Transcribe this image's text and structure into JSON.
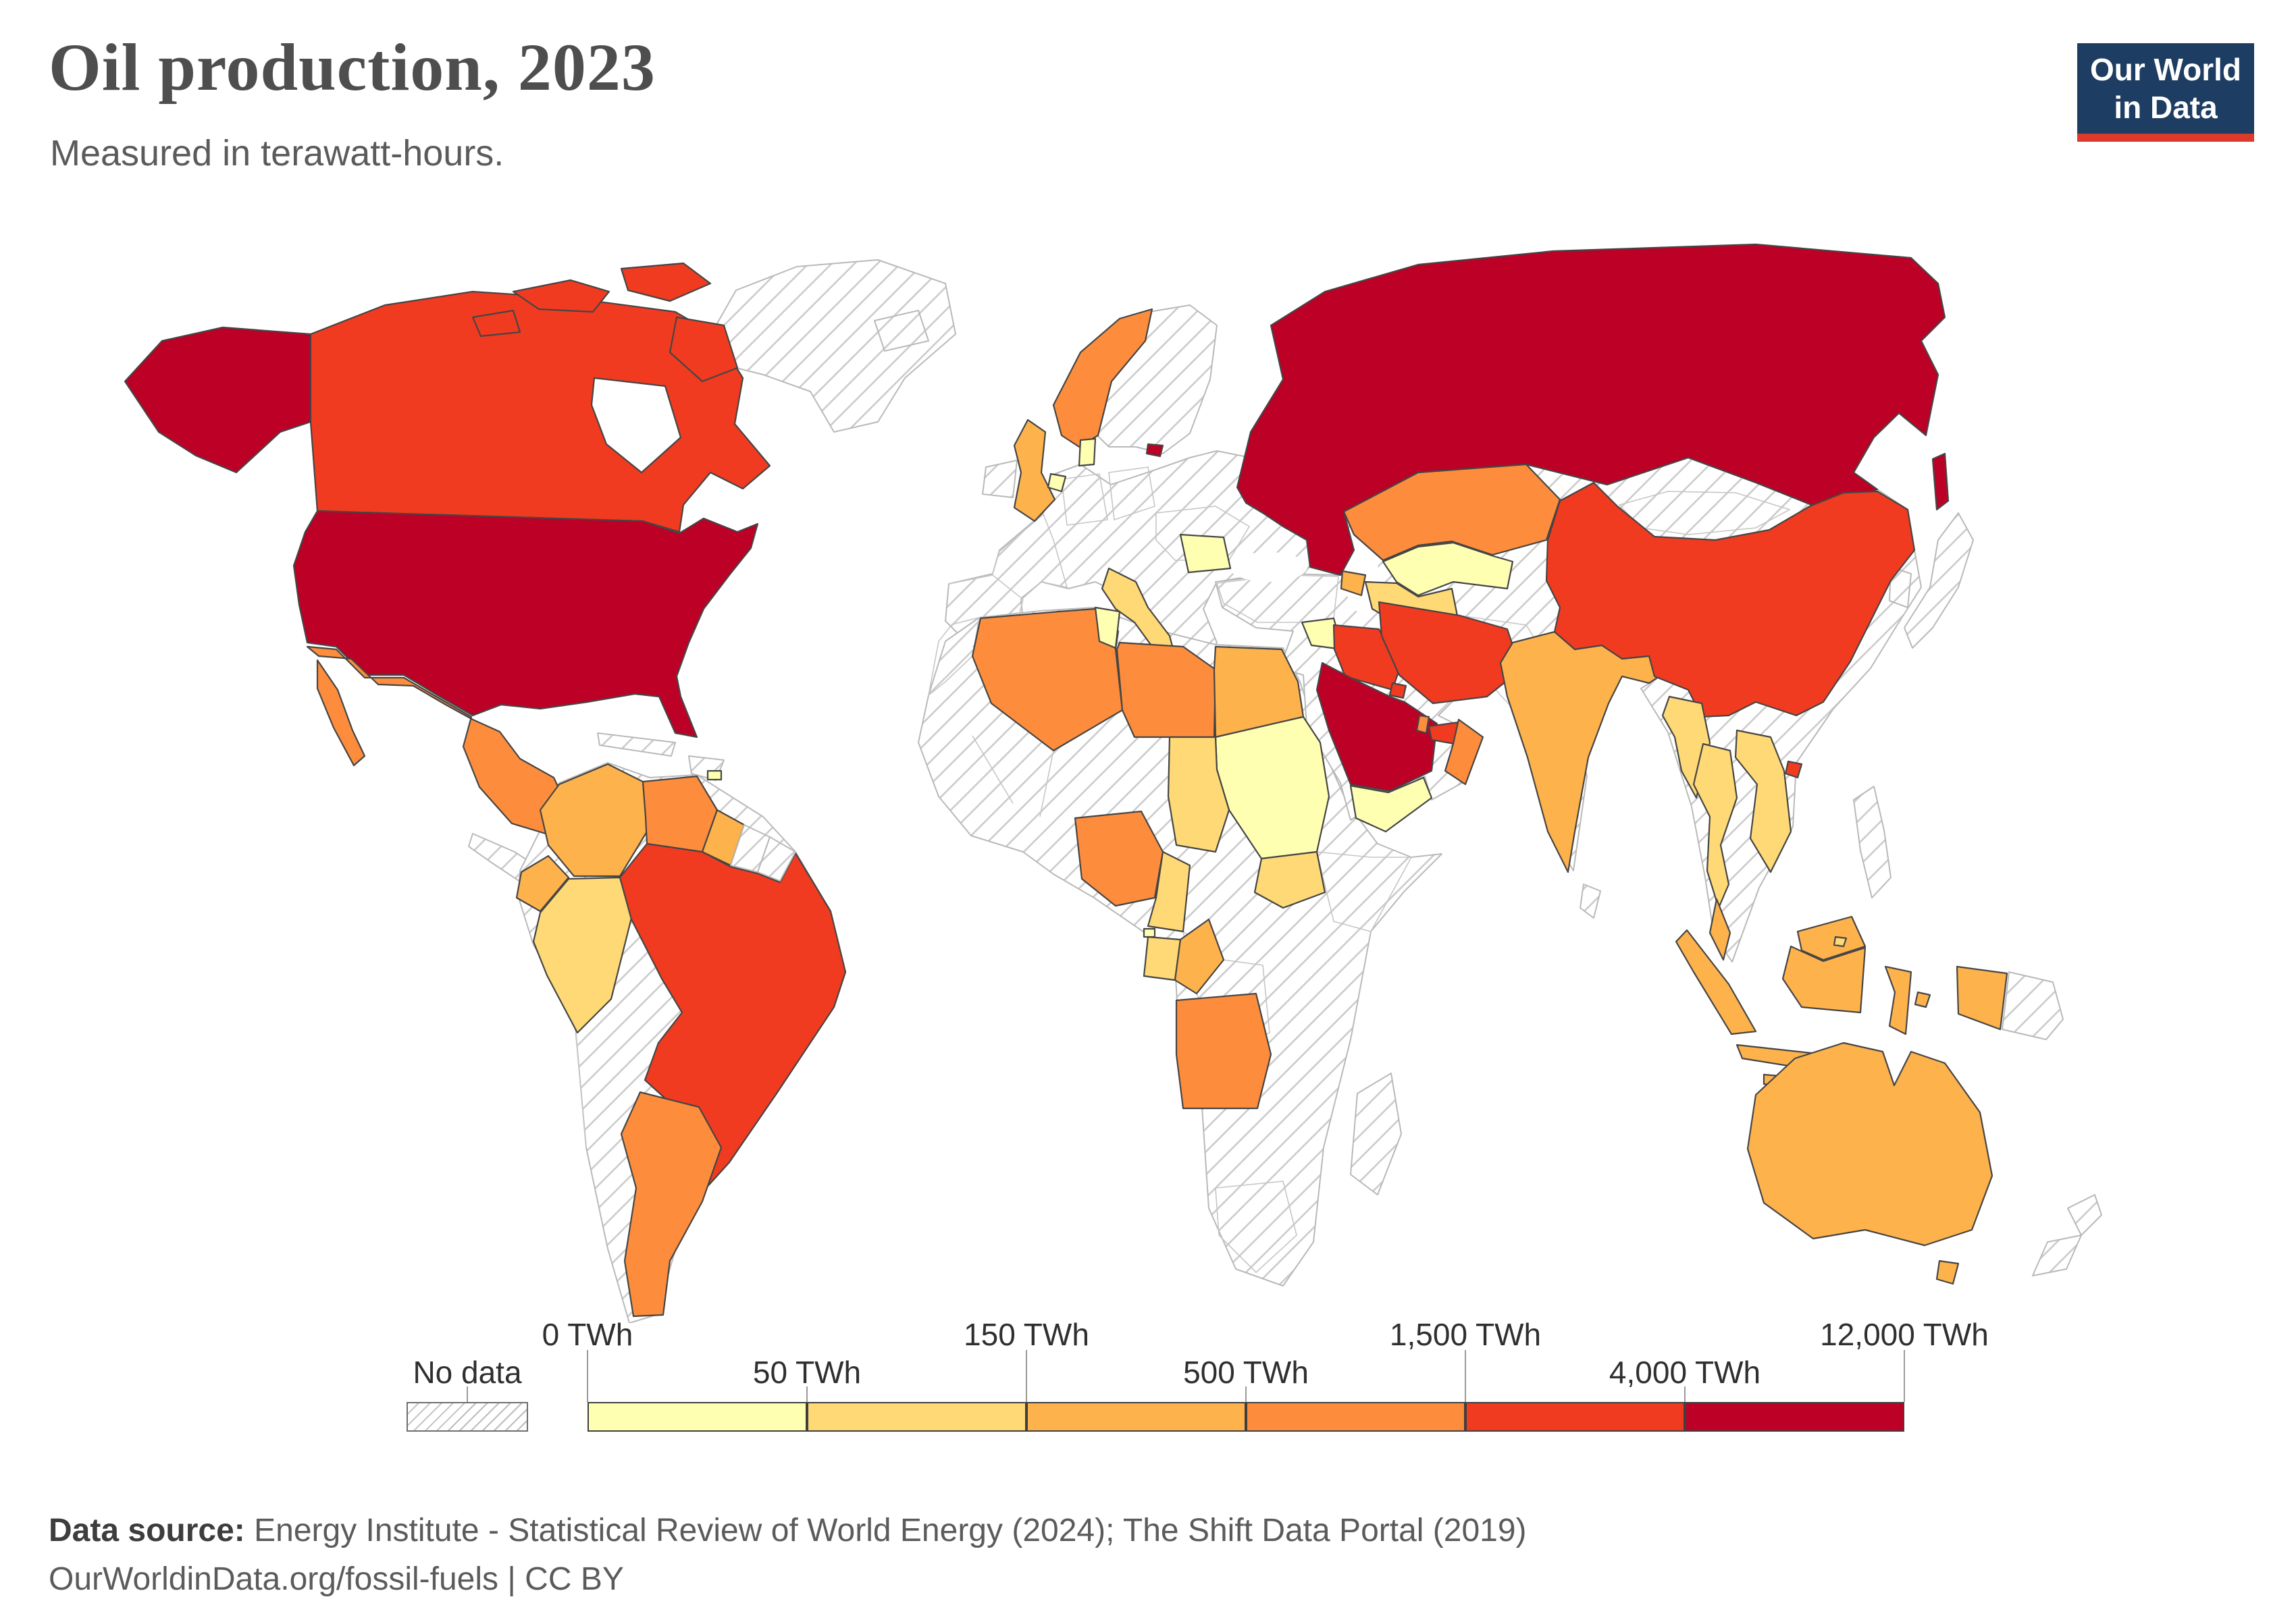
{
  "header": {
    "title": "Oil production, 2023",
    "subtitle": "Measured in terawatt-hours."
  },
  "logo": {
    "line1": "Our World",
    "line2": "in Data",
    "bg_color": "#1d3d63",
    "accent_color": "#dc3a2b"
  },
  "legend": {
    "no_data_label": "No data",
    "tick_labels": [
      "0 TWh",
      "50 TWh",
      "150 TWh",
      "500 TWh",
      "1,500 TWh",
      "4,000 TWh",
      "12,000 TWh"
    ],
    "bin_colors": [
      "#ffffb2",
      "#fed976",
      "#feb24c",
      "#fd8d3c",
      "#f03b20",
      "#bd0026"
    ]
  },
  "footer": {
    "source_label": "Data source:",
    "source_text": " Energy Institute - Statistical Review of World Energy (2024); The Shift Data Portal (2019)",
    "license_text": "OurWorldinData.org/fossil-fuels | CC BY"
  },
  "map": {
    "fills": {
      "united-states": "#bd0026",
      "canada": "#f03b20",
      "mexico": "#fd8d3c",
      "greenland": "hatch",
      "iceland": "hatch",
      "central-america": "hatch",
      "cuba": "hatch",
      "hispaniola": "hatch",
      "south-america-no-data": "hatch",
      "colombia": "#feb24c",
      "venezuela": "#fd8d3c",
      "guyana": "#feb24c",
      "suriname": "hatch",
      "french-guiana": "hatch",
      "ecuador": "#feb24c",
      "peru": "#fed976",
      "brazil": "#f03b20",
      "argentina": "#fd8d3c",
      "trinidad-and-tobago": "#ffffb2",
      "europe-no-data": "hatch",
      "scandinavia-east": "hatch",
      "ireland": "hatch",
      "norway": "#fd8d3c",
      "united-kingdom": "#feb24c",
      "denmark": "#ffffb2",
      "netherlands": "#ffffb2",
      "italy": "#fed976",
      "romania": "#ffffb2",
      "africa-no-data": "hatch",
      "madagascar": "hatch",
      "algeria": "#fd8d3c",
      "tunisia": "#ffffb2",
      "libya": "#fd8d3c",
      "egypt": "#feb24c",
      "sudan": "#ffffb2",
      "chad": "#fed976",
      "south-sudan": "#fed976",
      "nigeria": "#fd8d3c",
      "cameroon": "#fed976",
      "equatorial-guinea": "#ffffb2",
      "gabon": "#fed976",
      "republic-of-congo": "#feb24c",
      "angola": "#fd8d3c",
      "asia-no-data": "hatch",
      "japan": "hatch",
      "south-korea": "hatch",
      "philippines": "hatch",
      "papua-new-guinea": "hatch",
      "new-zealand": "hatch",
      "sri-lanka": "hatch",
      "russia": "#bd0026",
      "kazakhstan": "#fd8d3c",
      "uzbekistan": "#ffffb2",
      "turkmenistan": "#fed976",
      "azerbaijan": "#feb24c",
      "syria": "#ffffb2",
      "iraq": "#f03b20",
      "iran": "#f03b20",
      "kuwait": "#f03b20",
      "saudi-arabia": "#bd0026",
      "qatar": "#fd8d3c",
      "united-arab-emirates": "#f03b20",
      "oman": "#fd8d3c",
      "yemen": "#ffffb2",
      "india": "#feb24c",
      "china": "#f03b20",
      "myanmar": "#fed976",
      "thailand": "#fed976",
      "vietnam": "#fed976",
      "malaysia": "#feb24c",
      "brunei": "#fed976",
      "indonesia": "#feb24c",
      "australia": "#feb24c"
    }
  },
  "chart_data": {
    "type": "choropleth_map",
    "title": "Oil production, 2023",
    "subtitle": "Measured in terawatt-hours.",
    "unit": "TWh",
    "legend_position": "bottom",
    "color_scale": {
      "scheme": "YlOrRd",
      "bins": [
        {
          "range": "0-50 TWh",
          "color": "#ffffb2"
        },
        {
          "range": "50-150 TWh",
          "color": "#fed976"
        },
        {
          "range": "150-500 TWh",
          "color": "#feb24c"
        },
        {
          "range": "500-1,500 TWh",
          "color": "#fd8d3c"
        },
        {
          "range": "1,500-4,000 TWh",
          "color": "#f03b20"
        },
        {
          "range": "4,000-12,000 TWh",
          "color": "#bd0026"
        }
      ],
      "no_data": "hatched"
    },
    "countries": [
      {
        "name": "United States",
        "bin": "4,000-12,000 TWh",
        "color": "#bd0026"
      },
      {
        "name": "Russia",
        "bin": "4,000-12,000 TWh",
        "color": "#bd0026"
      },
      {
        "name": "Saudi Arabia",
        "bin": "4,000-12,000 TWh",
        "color": "#bd0026"
      },
      {
        "name": "Canada",
        "bin": "1,500-4,000 TWh",
        "color": "#f03b20"
      },
      {
        "name": "Brazil",
        "bin": "1,500-4,000 TWh",
        "color": "#f03b20"
      },
      {
        "name": "China",
        "bin": "1,500-4,000 TWh",
        "color": "#f03b20"
      },
      {
        "name": "Iran",
        "bin": "1,500-4,000 TWh",
        "color": "#f03b20"
      },
      {
        "name": "Iraq",
        "bin": "1,500-4,000 TWh",
        "color": "#f03b20"
      },
      {
        "name": "Kuwait",
        "bin": "1,500-4,000 TWh",
        "color": "#f03b20"
      },
      {
        "name": "United Arab Emirates",
        "bin": "1,500-4,000 TWh",
        "color": "#f03b20"
      },
      {
        "name": "Mexico",
        "bin": "500-1,500 TWh",
        "color": "#fd8d3c"
      },
      {
        "name": "Venezuela",
        "bin": "500-1,500 TWh",
        "color": "#fd8d3c"
      },
      {
        "name": "Argentina",
        "bin": "500-1,500 TWh",
        "color": "#fd8d3c"
      },
      {
        "name": "Norway",
        "bin": "500-1,500 TWh",
        "color": "#fd8d3c"
      },
      {
        "name": "Algeria",
        "bin": "500-1,500 TWh",
        "color": "#fd8d3c"
      },
      {
        "name": "Libya",
        "bin": "500-1,500 TWh",
        "color": "#fd8d3c"
      },
      {
        "name": "Nigeria",
        "bin": "500-1,500 TWh",
        "color": "#fd8d3c"
      },
      {
        "name": "Angola",
        "bin": "500-1,500 TWh",
        "color": "#fd8d3c"
      },
      {
        "name": "Kazakhstan",
        "bin": "500-1,500 TWh",
        "color": "#fd8d3c"
      },
      {
        "name": "Qatar",
        "bin": "500-1,500 TWh",
        "color": "#fd8d3c"
      },
      {
        "name": "Oman",
        "bin": "500-1,500 TWh",
        "color": "#fd8d3c"
      },
      {
        "name": "Colombia",
        "bin": "150-500 TWh",
        "color": "#feb24c"
      },
      {
        "name": "Guyana",
        "bin": "150-500 TWh",
        "color": "#feb24c"
      },
      {
        "name": "Ecuador",
        "bin": "150-500 TWh",
        "color": "#feb24c"
      },
      {
        "name": "United Kingdom",
        "bin": "150-500 TWh",
        "color": "#feb24c"
      },
      {
        "name": "Egypt",
        "bin": "150-500 TWh",
        "color": "#feb24c"
      },
      {
        "name": "Republic of Congo",
        "bin": "150-500 TWh",
        "color": "#feb24c"
      },
      {
        "name": "Azerbaijan",
        "bin": "150-500 TWh",
        "color": "#feb24c"
      },
      {
        "name": "India",
        "bin": "150-500 TWh",
        "color": "#feb24c"
      },
      {
        "name": "Malaysia",
        "bin": "150-500 TWh",
        "color": "#feb24c"
      },
      {
        "name": "Indonesia",
        "bin": "150-500 TWh",
        "color": "#feb24c"
      },
      {
        "name": "Australia",
        "bin": "150-500 TWh",
        "color": "#feb24c"
      },
      {
        "name": "Peru",
        "bin": "50-150 TWh",
        "color": "#fed976"
      },
      {
        "name": "Italy",
        "bin": "50-150 TWh",
        "color": "#fed976"
      },
      {
        "name": "Chad",
        "bin": "50-150 TWh",
        "color": "#fed976"
      },
      {
        "name": "South Sudan",
        "bin": "50-150 TWh",
        "color": "#fed976"
      },
      {
        "name": "Cameroon",
        "bin": "50-150 TWh",
        "color": "#fed976"
      },
      {
        "name": "Gabon",
        "bin": "50-150 TWh",
        "color": "#fed976"
      },
      {
        "name": "Turkmenistan",
        "bin": "50-150 TWh",
        "color": "#fed976"
      },
      {
        "name": "Myanmar",
        "bin": "50-150 TWh",
        "color": "#fed976"
      },
      {
        "name": "Thailand",
        "bin": "50-150 TWh",
        "color": "#fed976"
      },
      {
        "name": "Vietnam",
        "bin": "50-150 TWh",
        "color": "#fed976"
      },
      {
        "name": "Brunei",
        "bin": "50-150 TWh",
        "color": "#fed976"
      },
      {
        "name": "Trinidad and Tobago",
        "bin": "0-50 TWh",
        "color": "#ffffb2"
      },
      {
        "name": "Denmark",
        "bin": "0-50 TWh",
        "color": "#ffffb2"
      },
      {
        "name": "Netherlands",
        "bin": "0-50 TWh",
        "color": "#ffffb2"
      },
      {
        "name": "Romania",
        "bin": "0-50 TWh",
        "color": "#ffffb2"
      },
      {
        "name": "Tunisia",
        "bin": "0-50 TWh",
        "color": "#ffffb2"
      },
      {
        "name": "Sudan",
        "bin": "0-50 TWh",
        "color": "#ffffb2"
      },
      {
        "name": "Syria",
        "bin": "0-50 TWh",
        "color": "#ffffb2"
      },
      {
        "name": "Yemen",
        "bin": "0-50 TWh",
        "color": "#ffffb2"
      },
      {
        "name": "Uzbekistan",
        "bin": "0-50 TWh",
        "color": "#ffffb2"
      },
      {
        "name": "Equatorial Guinea",
        "bin": "0-50 TWh",
        "color": "#ffffb2"
      }
    ],
    "no_data_regions": [
      "Greenland",
      "Iceland",
      "Ireland",
      "Cuba",
      "Central America",
      "Bolivia",
      "Chile",
      "Paraguay",
      "Uruguay",
      "Suriname",
      "French Guiana",
      "most of continental Europe",
      "Morocco",
      "West Africa (except Nigeria)",
      "East and Southern Africa",
      "Madagascar",
      "Turkey",
      "Jordan",
      "Afghanistan",
      "Pakistan",
      "Mongolia",
      "Japan",
      "South Korea",
      "Philippines",
      "Papua New Guinea",
      "New Zealand"
    ]
  }
}
